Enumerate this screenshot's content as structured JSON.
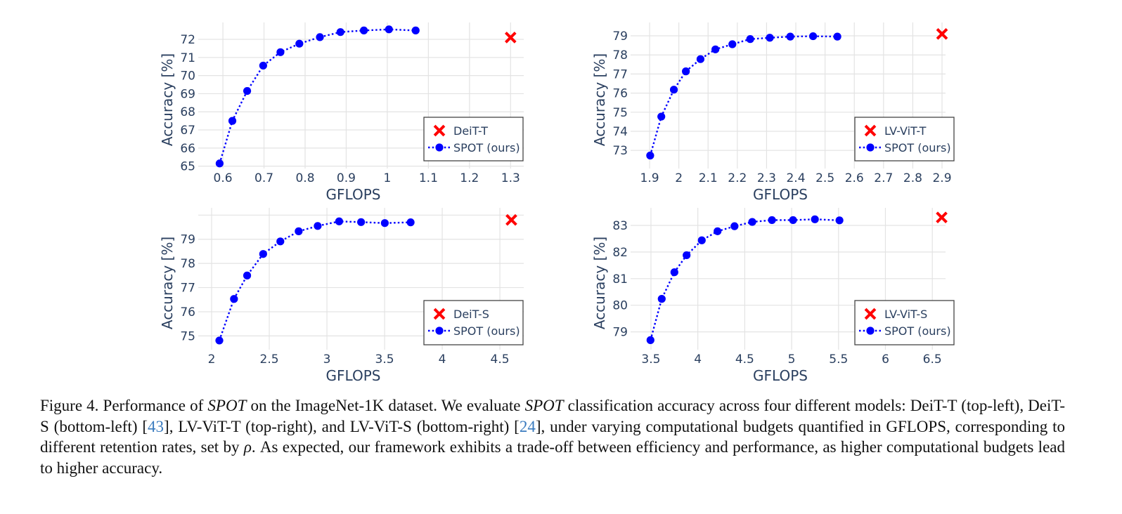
{
  "chart_data": [
    {
      "type": "scatter",
      "panel": "top-left",
      "xlabel": "GFLOPS",
      "ylabel": "Accuracy [%]",
      "xlim": [
        0.54,
        1.332
      ],
      "ylim": [
        64.87,
        72.93
      ],
      "xticks": [
        0.6,
        0.7,
        0.8,
        0.9,
        1,
        1.1,
        1.2,
        1.3
      ],
      "xtick_labels": [
        "0.6",
        "0.7",
        "0.8",
        "0.9",
        "1",
        "1.1",
        "1.2",
        "1.3"
      ],
      "yticks": [
        65,
        66,
        67,
        68,
        69,
        70,
        71,
        72
      ],
      "ytick_labels": [
        "65",
        "66",
        "67",
        "68",
        "69",
        "70",
        "71",
        "72"
      ],
      "ygrid": [
        65,
        66,
        67,
        68,
        69,
        70,
        71,
        72
      ],
      "grid": true,
      "legend_position": "bottom-right",
      "baseline": {
        "name": "DeiT-T",
        "x": 1.3,
        "y": 72.1,
        "color": "#ff0000",
        "marker": "x"
      },
      "series": [
        {
          "name": "SPOT (ours)",
          "color": "#0000ff",
          "marker": "circle",
          "line": "dotted",
          "x": [
            0.592,
            0.623,
            0.659,
            0.698,
            0.74,
            0.786,
            0.836,
            0.886,
            0.943,
            1.004,
            1.069
          ],
          "y": [
            65.15,
            67.5,
            69.15,
            70.55,
            71.29,
            71.76,
            72.12,
            72.4,
            72.49,
            72.55,
            72.49
          ]
        }
      ]
    },
    {
      "type": "scatter",
      "panel": "top-right",
      "xlabel": "GFLOPS",
      "ylabel": "Accuracy [%]",
      "xlim": [
        1.835,
        2.912
      ],
      "ylim": [
        72.05,
        79.7
      ],
      "xticks": [
        1.9,
        2.0,
        2.1,
        2.2,
        2.3,
        2.4,
        2.5,
        2.6,
        2.7,
        2.8,
        2.9
      ],
      "xtick_labels": [
        "1.9",
        "2",
        "2.1",
        "2.2",
        "2.3",
        "2.4",
        "2.5",
        "2.6",
        "2.7",
        "2.8",
        "2.9"
      ],
      "yticks": [
        73,
        74,
        75,
        76,
        77,
        78,
        79
      ],
      "ytick_labels": [
        "73",
        "74",
        "75",
        "76",
        "77",
        "78",
        "79"
      ],
      "ygrid": [
        73,
        74,
        75,
        76,
        77,
        78,
        79
      ],
      "grid": true,
      "legend_position": "bottom-right",
      "baseline": {
        "name": "LV-ViT-T",
        "x": 2.9,
        "y": 79.1,
        "color": "#ff0000",
        "marker": "x"
      },
      "series": [
        {
          "name": "SPOT (ours)",
          "color": "#0000ff",
          "marker": "circle",
          "line": "dotted",
          "x": [
            1.902,
            1.94,
            1.983,
            2.024,
            2.074,
            2.125,
            2.183,
            2.244,
            2.311,
            2.381,
            2.459,
            2.542
          ],
          "y": [
            72.73,
            74.77,
            76.18,
            77.14,
            77.78,
            78.29,
            78.56,
            78.83,
            78.9,
            78.96,
            78.98,
            78.96
          ]
        }
      ]
    },
    {
      "type": "scatter",
      "panel": "bottom-left",
      "xlabel": "GFLOPS",
      "ylabel": "Accuracy [%]",
      "xlim": [
        1.884,
        4.707
      ],
      "ylim": [
        74.43,
        80.3
      ],
      "xticks": [
        2,
        2.5,
        3,
        3.5,
        4,
        4.5
      ],
      "xtick_labels": [
        "2",
        "2.5",
        "3",
        "3.5",
        "4",
        "4.5"
      ],
      "yticks": [
        75,
        76,
        77,
        78,
        79
      ],
      "ytick_labels": [
        "75",
        "76",
        "77",
        "78",
        "79"
      ],
      "ygrid": [
        75,
        76,
        77,
        78,
        79,
        80
      ],
      "grid": true,
      "legend_position": "bottom-right",
      "baseline": {
        "name": "DeiT-S",
        "x": 4.6,
        "y": 79.8,
        "color": "#ff0000",
        "marker": "x"
      },
      "series": [
        {
          "name": "SPOT (ours)",
          "color": "#0000ff",
          "marker": "circle",
          "line": "dotted",
          "x": [
            2.067,
            2.194,
            2.308,
            2.447,
            2.596,
            2.755,
            2.92,
            3.106,
            3.296,
            3.502,
            3.726
          ],
          "y": [
            74.81,
            76.53,
            77.5,
            78.39,
            78.91,
            79.33,
            79.55,
            79.74,
            79.71,
            79.67,
            79.7
          ]
        }
      ]
    },
    {
      "type": "scatter",
      "panel": "bottom-right",
      "xlabel": "GFLOPS",
      "ylabel": "Accuracy [%]",
      "xlim": [
        3.283,
        6.641
      ],
      "ylim": [
        78.33,
        83.66
      ],
      "xticks": [
        3.5,
        4,
        4.5,
        5,
        5.5,
        6,
        6.5
      ],
      "xtick_labels": [
        "3.5",
        "4",
        "4.5",
        "5",
        "5.5",
        "6",
        "6.5"
      ],
      "yticks": [
        79,
        80,
        81,
        82,
        83
      ],
      "ytick_labels": [
        "79",
        "80",
        "81",
        "82",
        "83"
      ],
      "ygrid": [
        79,
        80,
        81,
        82,
        83
      ],
      "grid": true,
      "legend_position": "bottom-right",
      "baseline": {
        "name": "LV-ViT-S",
        "x": 6.6,
        "y": 83.3,
        "color": "#ff0000",
        "marker": "x"
      },
      "series": [
        {
          "name": "SPOT (ours)",
          "color": "#0000ff",
          "marker": "circle",
          "line": "dotted",
          "x": [
            3.495,
            3.615,
            3.75,
            3.88,
            4.042,
            4.21,
            4.391,
            4.58,
            4.79,
            5.015,
            5.248,
            5.51
          ],
          "y": [
            78.69,
            80.24,
            81.24,
            81.88,
            82.44,
            82.78,
            82.97,
            83.13,
            83.2,
            83.2,
            83.23,
            83.19
          ]
        }
      ]
    }
  ],
  "caption": {
    "p1": "Figure 4.  Performance of ",
    "spot1": "SPOT",
    "p2": " on the ImageNet-1K dataset.  We evaluate ",
    "spot2": "SPOT",
    "p3": " classification accuracy across four different models: DeiT-T (top-left), DeiT-S (bottom-left) [",
    "ref1": "43",
    "p4": "], LV-ViT-T (top-right), and LV-ViT-S (bottom-right) [",
    "ref2": "24",
    "p5": "], under varying computational budgets quantified in GFLOPS, corresponding to different retention rates, set by ",
    "rho": "ρ",
    "p6": ".  As expected, our framework exhibits a trade-off between efficiency and performance, as higher computational budgets lead to higher accuracy."
  }
}
